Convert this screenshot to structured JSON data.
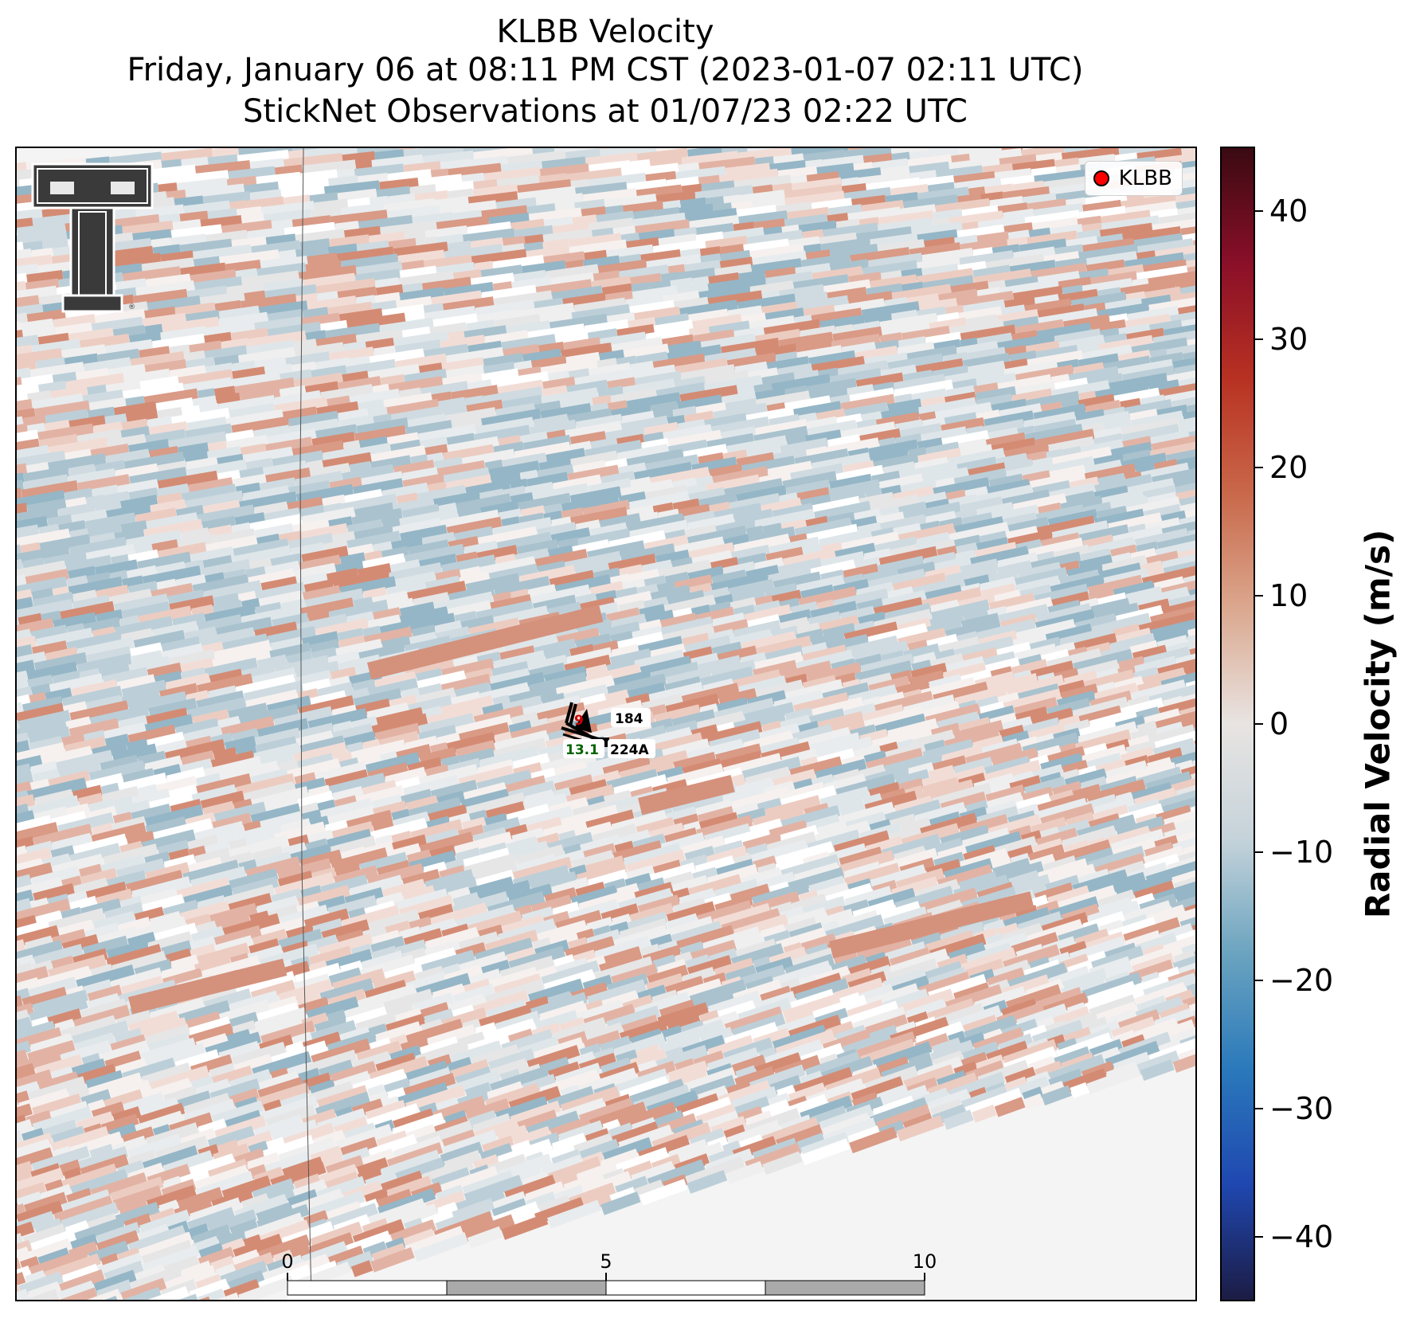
{
  "title": {
    "line1": "KLBB Velocity",
    "line2": "Friday, January 06 at 08:11 PM CST (2023-01-07 02:11 UTC)",
    "line3": "StickNet Observations at 01/07/23 02:22 UTC"
  },
  "legend": {
    "label": "KLBB",
    "marker_color": "#ff0000"
  },
  "logo": {
    "name": "texas-tech-double-t-logo",
    "text": "TT"
  },
  "stations": [
    {
      "id": "184",
      "value": "9",
      "value_color": "#cc0000"
    },
    {
      "id": "224A",
      "value": "13.1",
      "value_color": "#006400"
    }
  ],
  "scale_bar": {
    "labels": [
      "0",
      "5",
      "10"
    ],
    "unit": "km"
  },
  "colorbar": {
    "title": "Radial Velocity (m/s)",
    "ticks": [
      "40",
      "30",
      "20",
      "10",
      "0",
      "−10",
      "−20",
      "−30",
      "−40"
    ],
    "tick_values": [
      40,
      30,
      20,
      10,
      0,
      -10,
      -20,
      -30,
      -40
    ],
    "range": [
      -45,
      45
    ],
    "colormap": [
      "#1c1c44",
      "#1f47b0",
      "#2a79bb",
      "#6aa3bf",
      "#c5d3da",
      "#e8e4e2",
      "#dba88f",
      "#c9684a",
      "#b83122",
      "#8a0f28",
      "#3a0a12"
    ]
  }
}
